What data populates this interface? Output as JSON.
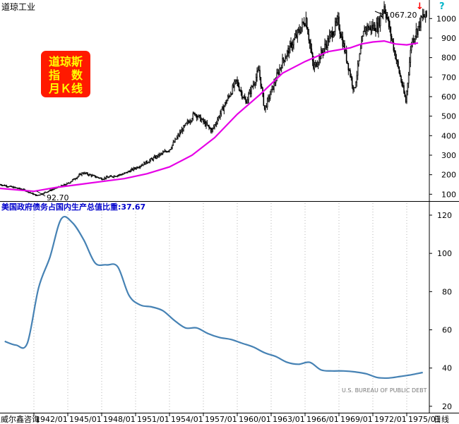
{
  "header": {
    "top_title": "道琼工业",
    "badge_lines": [
      "道琼斯",
      "指　数",
      "月Ｋ线"
    ],
    "bottom_title": "美国政府债务占国内生产总值比重:37.67",
    "source_note": "U.S. BUREAU OF PUBLIC DEBT",
    "footer_left": "威尔鑫咨询",
    "footer_right": "日线",
    "marker_down": "↓",
    "marker_q": "?"
  },
  "colors": {
    "candles": "#000000",
    "moving_average": "#e600e6",
    "debt_line": "#4682b4",
    "badge_bg": "#ff1a00",
    "badge_text": "#ffff00",
    "bottom_title": "#0000cc",
    "marker_down": "#ff0000",
    "marker_q": "#00b4c8",
    "grid": "#b4b4b4"
  },
  "chart_data": [
    {
      "type": "line",
      "title": "道琼工业",
      "series": [
        {
          "x": [
            "1939-01",
            "1941-01",
            "1942-04",
            "1945-01",
            "1946-05",
            "1948-01",
            "1950-01",
            "1952-01",
            "1954-01",
            "1955-01",
            "1956-04",
            "1957-10",
            "1959-12",
            "1960-10",
            "1961-12",
            "1962-06",
            "1964-01",
            "1966-02",
            "1966-10",
            "1968-12",
            "1970-05",
            "1971-04",
            "1972-06",
            "1973-01",
            "1974-12",
            "1975-06",
            "1976-06"
          ],
          "values": [
            150,
            125,
            93,
            155,
            210,
            180,
            205,
            265,
            330,
            420,
            515,
            425,
            680,
            570,
            735,
            535,
            780,
            1000,
            745,
            985,
            630,
            950,
            960,
            1067,
            575,
            880,
            1010
          ]
        },
        {
          "x": [
            "1939",
            "1941",
            "1942",
            "1944",
            "1946",
            "1948",
            "1950",
            "1952",
            "1954",
            "1956",
            "1958",
            "1960",
            "1962",
            "1964",
            "1966",
            "1968",
            "1970",
            "1971",
            "1972",
            "1973",
            "1974",
            "1975",
            "1976"
          ],
          "values": [
            130,
            120,
            115,
            135,
            150,
            165,
            180,
            205,
            240,
            300,
            390,
            510,
            610,
            720,
            780,
            830,
            850,
            870,
            880,
            885,
            870,
            865,
            875
          ]
        }
      ],
      "annotations": [
        "1067.20",
        "92.70"
      ],
      "yticks": [
        100,
        200,
        300,
        400,
        500,
        600,
        700,
        800,
        900,
        1000
      ],
      "ylim": [
        65,
        1095
      ],
      "xlim": [
        "1939-01",
        "1977-01"
      ]
    },
    {
      "type": "line",
      "title": "美国政府债务占国内生产总值比重:37.67",
      "series": [
        {
          "x": [
            "1939-06",
            "1940-06",
            "1941-06",
            "1942-06",
            "1943-06",
            "1944-06",
            "1945-06",
            "1946-06",
            "1947-06",
            "1948-06",
            "1949-06",
            "1950-06",
            "1951-06",
            "1952-06",
            "1953-06",
            "1954-06",
            "1955-06",
            "1956-06",
            "1957-06",
            "1958-06",
            "1959-06",
            "1960-06",
            "1961-06",
            "1962-06",
            "1963-06",
            "1964-06",
            "1965-06",
            "1966-06",
            "1967-06",
            "1968-06",
            "1969-06",
            "1970-06",
            "1971-06",
            "1972-06",
            "1973-06",
            "1974-06",
            "1975-06",
            "1976-06"
          ],
          "values": [
            54,
            52,
            53,
            82,
            98,
            118,
            116,
            107,
            95,
            94,
            93,
            78,
            73,
            72,
            70,
            65,
            61,
            61,
            58,
            56,
            55,
            53,
            51,
            48,
            46,
            43,
            42,
            43,
            39,
            38.5,
            38.5,
            38,
            37,
            35,
            34.8,
            35.6,
            36.5,
            37.67
          ]
        }
      ],
      "yticks": [
        20,
        40,
        60,
        80,
        100,
        120
      ],
      "ylim": [
        17,
        127
      ],
      "xticks": [
        "1942/01",
        "1945/01",
        "1948/01",
        "1951/01",
        "1954/01",
        "1957/01",
        "1960/01",
        "1963/01",
        "1966/01",
        "1969/01",
        "1972/01",
        "1975/01"
      ],
      "xtick_labels": [
        "1942/01",
        "1945/01",
        "1948/01",
        "1951/01",
        "1954/01",
        "1957/01",
        "1960/01",
        "1963/01",
        "1966/01",
        "1969/01",
        "1972/01",
        "1975/01"
      ],
      "xlim": [
        "1939-01",
        "1977-01"
      ]
    }
  ]
}
